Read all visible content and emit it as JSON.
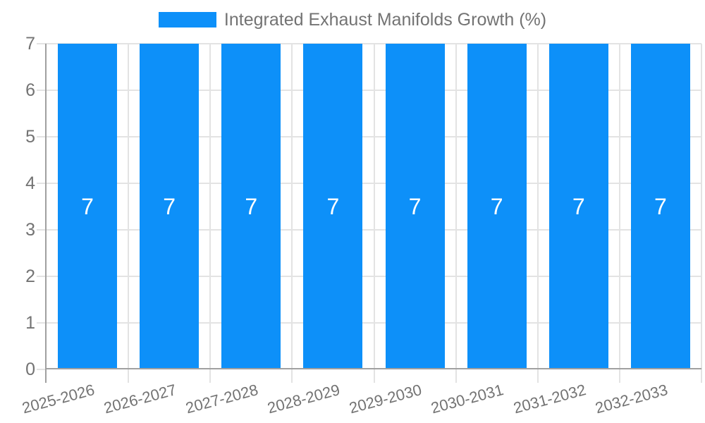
{
  "chart_data": {
    "type": "bar",
    "title": "Integrated Exhaust Manifolds Growth (%)",
    "categories": [
      "2025-2026",
      "2026-2027",
      "2027-2028",
      "2028-2029",
      "2029-2030",
      "2030-2031",
      "2031-2032",
      "2032-2033"
    ],
    "values": [
      7,
      7,
      7,
      7,
      7,
      7,
      7,
      7
    ],
    "bar_value_labels": [
      "7",
      "7",
      "7",
      "7",
      "7",
      "7",
      "7",
      "7"
    ],
    "xlabel": "",
    "ylabel": "",
    "ylim": [
      0,
      7
    ],
    "yticks": [
      0,
      1,
      2,
      3,
      4,
      5,
      6,
      7
    ],
    "grid": true,
    "legend_position": "top",
    "x_label_rotation_deg": -15,
    "colors": {
      "bar": "#0d90f9",
      "bar_value_label": "#ffffff",
      "axis_text": "#737373",
      "legend_text": "#737373",
      "grid_line": "#e3e3e3",
      "axis_line": "#a0a0a0",
      "background": "#ffffff"
    }
  }
}
